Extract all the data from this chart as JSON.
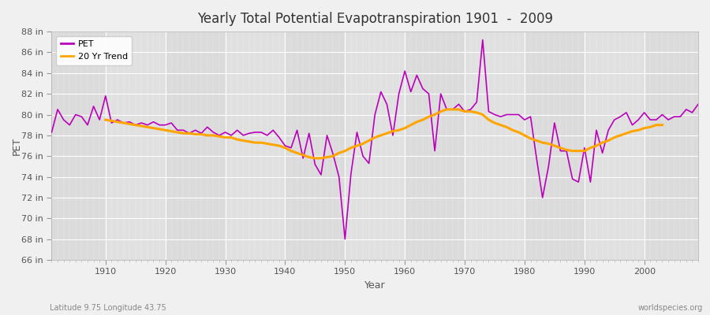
{
  "title": "Yearly Total Potential Evapotranspiration 1901  -  2009",
  "xlabel": "Year",
  "ylabel": "PET",
  "subtitle_left": "Latitude 9.75 Longitude 43.75",
  "subtitle_right": "worldspecies.org",
  "pet_color": "#BB00BB",
  "trend_color": "#FFA500",
  "bg_color": "#F0F0F0",
  "plot_bg_color": "#E0E0E0",
  "grid_color": "#FFFFFF",
  "ylim": [
    66,
    88
  ],
  "xlim": [
    1901,
    2009
  ],
  "ytick_step": 2,
  "xtick_major": 10,
  "years": [
    1901,
    1902,
    1903,
    1904,
    1905,
    1906,
    1907,
    1908,
    1909,
    1910,
    1911,
    1912,
    1913,
    1914,
    1915,
    1916,
    1917,
    1918,
    1919,
    1920,
    1921,
    1922,
    1923,
    1924,
    1925,
    1926,
    1927,
    1928,
    1929,
    1930,
    1931,
    1932,
    1933,
    1934,
    1935,
    1936,
    1937,
    1938,
    1939,
    1940,
    1941,
    1942,
    1943,
    1944,
    1945,
    1946,
    1947,
    1948,
    1949,
    1950,
    1951,
    1952,
    1953,
    1954,
    1955,
    1956,
    1957,
    1958,
    1959,
    1960,
    1961,
    1962,
    1963,
    1964,
    1965,
    1966,
    1967,
    1968,
    1969,
    1970,
    1971,
    1972,
    1973,
    1974,
    1975,
    1976,
    1977,
    1978,
    1979,
    1980,
    1981,
    1982,
    1983,
    1984,
    1985,
    1986,
    1987,
    1988,
    1989,
    1990,
    1991,
    1992,
    1993,
    1994,
    1995,
    1996,
    1997,
    1998,
    1999,
    2000,
    2001,
    2002,
    2003,
    2004,
    2005,
    2006,
    2007,
    2008,
    2009
  ],
  "pet_values": [
    78.3,
    80.5,
    79.5,
    79.0,
    80.0,
    79.8,
    79.0,
    80.8,
    79.5,
    81.8,
    79.2,
    79.5,
    79.2,
    79.3,
    79.0,
    79.2,
    79.0,
    79.3,
    79.0,
    79.0,
    79.2,
    78.5,
    78.5,
    78.2,
    78.5,
    78.2,
    78.8,
    78.3,
    78.0,
    78.3,
    78.0,
    78.5,
    78.0,
    78.2,
    78.3,
    78.3,
    78.0,
    78.5,
    77.8,
    77.0,
    76.8,
    78.5,
    75.8,
    78.2,
    75.2,
    74.2,
    78.0,
    76.2,
    74.0,
    68.0,
    74.3,
    78.3,
    76.0,
    75.3,
    80.0,
    82.2,
    81.0,
    78.0,
    82.0,
    84.2,
    82.2,
    83.8,
    82.5,
    82.0,
    76.5,
    82.0,
    80.5,
    80.5,
    81.0,
    80.3,
    80.5,
    81.2,
    87.2,
    80.3,
    80.0,
    79.8,
    80.0,
    80.0,
    80.0,
    79.5,
    79.8,
    75.8,
    72.0,
    75.0,
    79.2,
    76.5,
    76.5,
    73.8,
    73.5,
    76.8,
    73.5,
    78.5,
    76.3,
    78.5,
    79.5,
    79.8,
    80.2,
    79.0,
    79.5,
    80.2,
    79.5,
    79.5,
    80.0,
    79.5,
    79.8,
    79.8,
    80.5,
    80.2,
    81.0
  ],
  "trend_values": [
    null,
    null,
    null,
    null,
    null,
    null,
    null,
    null,
    null,
    79.5,
    79.4,
    79.3,
    79.2,
    79.1,
    79.0,
    78.9,
    78.8,
    78.7,
    78.6,
    78.5,
    78.4,
    78.3,
    78.2,
    78.2,
    78.1,
    78.1,
    78.0,
    78.0,
    77.9,
    77.8,
    77.8,
    77.6,
    77.5,
    77.4,
    77.3,
    77.3,
    77.2,
    77.1,
    77.0,
    76.8,
    76.5,
    76.3,
    76.1,
    75.9,
    75.8,
    75.8,
    75.9,
    76.0,
    76.3,
    76.5,
    76.8,
    77.0,
    77.2,
    77.5,
    77.8,
    78.0,
    78.2,
    78.4,
    78.5,
    78.7,
    79.0,
    79.3,
    79.5,
    79.8,
    80.0,
    80.3,
    80.5,
    80.5,
    80.5,
    80.3,
    80.3,
    80.2,
    80.0,
    79.5,
    79.2,
    79.0,
    78.8,
    78.5,
    78.3,
    78.0,
    77.7,
    77.5,
    77.3,
    77.2,
    77.0,
    76.8,
    76.6,
    76.5,
    76.5,
    76.5,
    76.8,
    77.0,
    77.3,
    77.5,
    77.8,
    78.0,
    78.2,
    78.4,
    78.5,
    78.7,
    78.8,
    79.0,
    79.0,
    null
  ]
}
